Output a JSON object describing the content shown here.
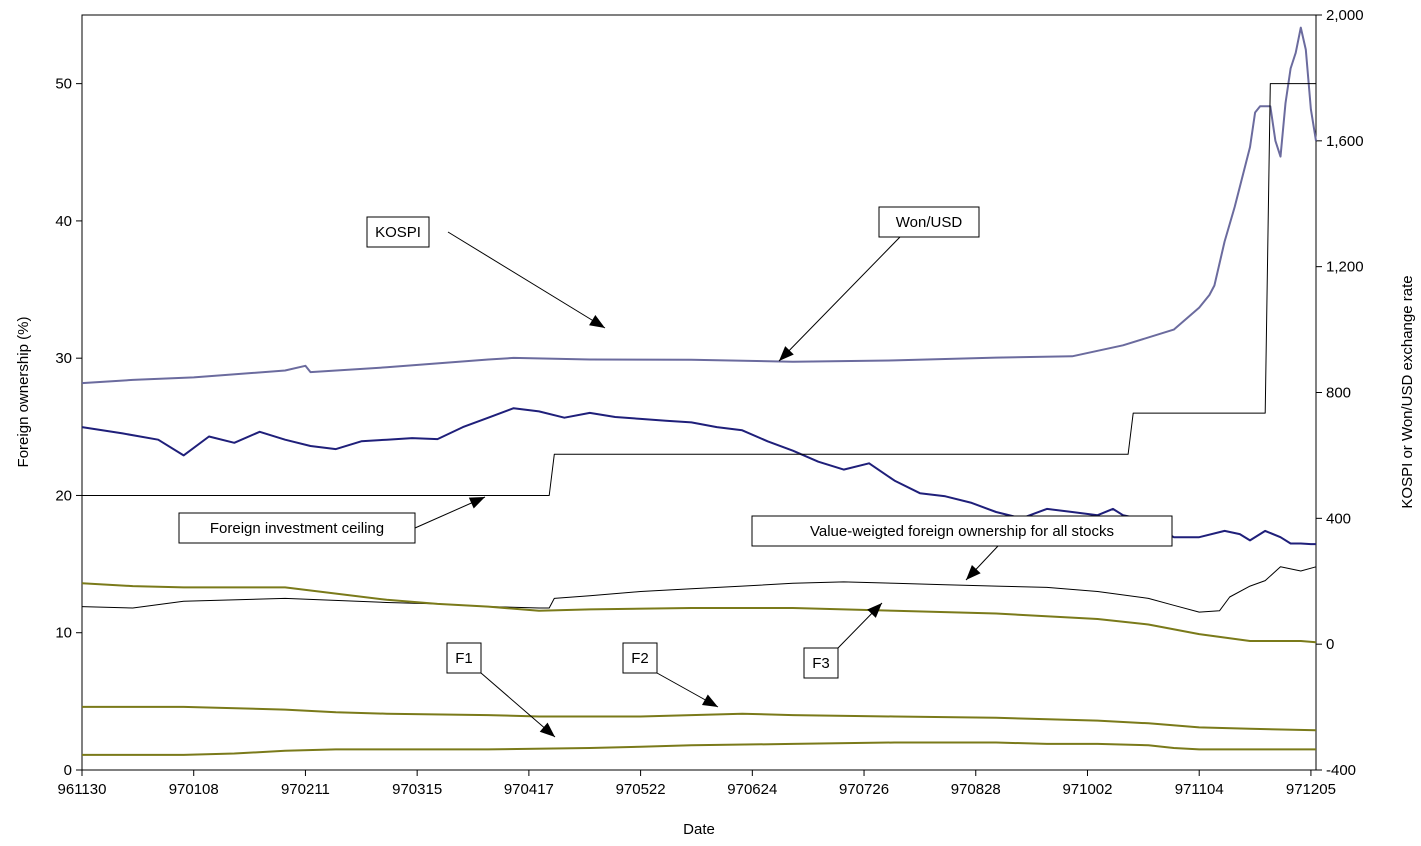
{
  "chart_data": {
    "type": "line",
    "title": "",
    "xlabel": "Date",
    "ylabel_left": "Foreign ownership (%)",
    "ylabel_right": "KOSPI or Won/USD exchange rate",
    "x_ticks": [
      "961130",
      "970108",
      "970211",
      "970315",
      "970417",
      "970522",
      "970624",
      "970726",
      "970828",
      "971002",
      "971104",
      "971205"
    ],
    "x_range": [
      0,
      243
    ],
    "y_left_ticks": [
      "0",
      "10",
      "20",
      "30",
      "40",
      "50"
    ],
    "y_left_range": [
      0,
      55
    ],
    "y_right_ticks": [
      "-400",
      "0",
      "400",
      "800",
      "1,200",
      "1,600",
      "2,000"
    ],
    "y_right_range": [
      -400,
      2000
    ],
    "grid": false,
    "legend": "none",
    "series": [
      {
        "name": "Won/USD",
        "axis": "right",
        "color": "#6B6B9E",
        "x": [
          0,
          10,
          22,
          40,
          44,
          45,
          60,
          80,
          85,
          100,
          120,
          140,
          160,
          180,
          195,
          205,
          215,
          220,
          222,
          223,
          225,
          227,
          230,
          231,
          232,
          234,
          235,
          236,
          237,
          238,
          239,
          240,
          241,
          242,
          243
        ],
        "y": [
          830,
          840,
          848,
          870,
          885,
          865,
          880,
          905,
          910,
          905,
          904,
          898,
          902,
          911,
          915,
          950,
          1000,
          1070,
          1110,
          1140,
          1280,
          1390,
          1580,
          1690,
          1710,
          1710,
          1600,
          1550,
          1720,
          1830,
          1880,
          1960,
          1890,
          1700,
          1600
        ]
      },
      {
        "name": "KOSPI",
        "axis": "right",
        "color": "#1F1F7A",
        "x": [
          0,
          8,
          15,
          20,
          25,
          30,
          35,
          40,
          45,
          50,
          55,
          60,
          65,
          70,
          75,
          80,
          85,
          90,
          95,
          100,
          105,
          110,
          115,
          120,
          125,
          130,
          135,
          140,
          145,
          150,
          155,
          160,
          165,
          170,
          175,
          180,
          185,
          190,
          195,
          200,
          203,
          205,
          208,
          210,
          212,
          215,
          220,
          225,
          228,
          230,
          233,
          236,
          238,
          240,
          242,
          243
        ],
        "y": [
          690,
          670,
          650,
          600,
          660,
          640,
          675,
          650,
          630,
          620,
          645,
          650,
          655,
          652,
          690,
          720,
          750,
          740,
          720,
          735,
          722,
          716,
          710,
          705,
          690,
          680,
          645,
          615,
          580,
          555,
          575,
          520,
          480,
          470,
          450,
          420,
          400,
          430,
          420,
          410,
          430,
          410,
          400,
          385,
          370,
          340,
          340,
          360,
          350,
          330,
          360,
          340,
          320,
          320,
          318,
          318
        ]
      },
      {
        "name": "Foreign investment ceiling",
        "axis": "left",
        "color": "#000000",
        "x": [
          0,
          92,
          93,
          206,
          207,
          233,
          234,
          243
        ],
        "y": [
          20,
          20,
          23,
          23,
          26,
          26,
          50,
          50
        ]
      },
      {
        "name": "Value-weigted foreign ownership for all stocks",
        "axis": "left",
        "color": "#000000",
        "x": [
          0,
          10,
          20,
          40,
          60,
          70,
          80,
          90,
          92,
          93,
          100,
          110,
          120,
          130,
          140,
          150,
          160,
          170,
          180,
          190,
          200,
          210,
          215,
          220,
          224,
          226,
          230,
          233,
          236,
          240,
          243
        ],
        "y": [
          11.9,
          11.8,
          12.3,
          12.5,
          12.2,
          12.1,
          11.9,
          11.8,
          11.8,
          12.5,
          12.7,
          13.0,
          13.2,
          13.4,
          13.6,
          13.7,
          13.6,
          13.5,
          13.4,
          13.3,
          13.0,
          12.5,
          12.0,
          11.5,
          11.6,
          12.6,
          13.4,
          13.8,
          14.8,
          14.5,
          14.8
        ]
      },
      {
        "name": "F3",
        "axis": "left",
        "color": "#7A7A1A",
        "x": [
          0,
          10,
          20,
          40,
          60,
          70,
          80,
          90,
          100,
          120,
          140,
          160,
          180,
          200,
          210,
          220,
          230,
          240,
          243
        ],
        "y": [
          13.6,
          13.4,
          13.3,
          13.3,
          12.4,
          12.1,
          11.9,
          11.6,
          11.7,
          11.8,
          11.8,
          11.6,
          11.4,
          11.0,
          10.6,
          9.9,
          9.4,
          9.4,
          9.3
        ]
      },
      {
        "name": "F2",
        "axis": "left",
        "color": "#7A7A1A",
        "x": [
          0,
          20,
          40,
          50,
          60,
          80,
          90,
          100,
          110,
          120,
          130,
          140,
          160,
          180,
          200,
          210,
          220,
          230,
          243
        ],
        "y": [
          4.6,
          4.6,
          4.4,
          4.2,
          4.1,
          4.0,
          3.9,
          3.9,
          3.9,
          4.0,
          4.1,
          4.0,
          3.9,
          3.8,
          3.6,
          3.4,
          3.1,
          3.0,
          2.9
        ]
      },
      {
        "name": "F1",
        "axis": "left",
        "color": "#7A7A1A",
        "x": [
          0,
          10,
          20,
          30,
          40,
          50,
          60,
          80,
          100,
          110,
          120,
          140,
          160,
          180,
          190,
          200,
          210,
          215,
          220,
          230,
          243
        ],
        "y": [
          1.1,
          1.1,
          1.1,
          1.2,
          1.4,
          1.5,
          1.5,
          1.5,
          1.6,
          1.7,
          1.8,
          1.9,
          2.0,
          2.0,
          1.9,
          1.9,
          1.8,
          1.6,
          1.5,
          1.5,
          1.5
        ]
      }
    ],
    "annotations": [
      {
        "name": "KOSPI",
        "text": "KOSPI"
      },
      {
        "name": "Won/USD",
        "text": "Won/USD"
      },
      {
        "name": "Foreign investment ceiling",
        "text": "Foreign investment ceiling"
      },
      {
        "name": "Value-weigted foreign ownership for all stocks",
        "text": "Value-weigted foreign ownership for all stocks"
      },
      {
        "name": "F3",
        "text": "F3"
      },
      {
        "name": "F2",
        "text": "F2"
      },
      {
        "name": "F1",
        "text": "F1"
      }
    ]
  }
}
